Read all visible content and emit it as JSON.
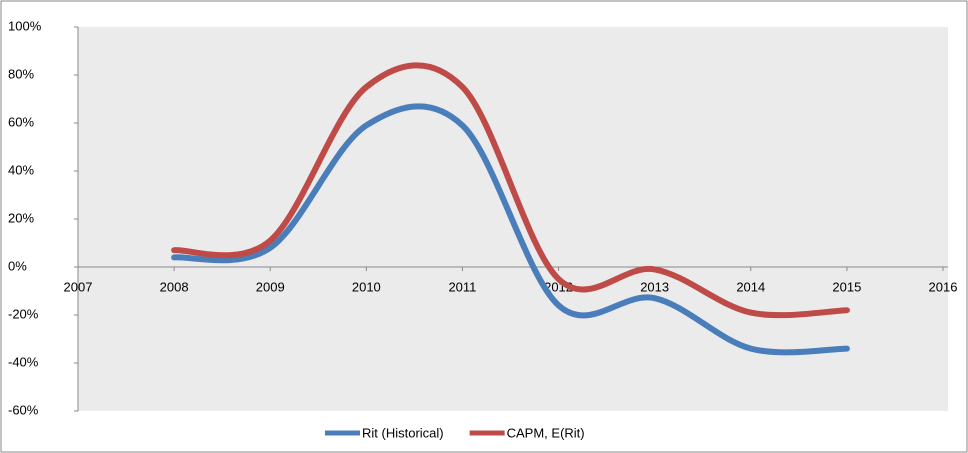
{
  "chart_data": {
    "type": "line",
    "x": [
      2008,
      2009,
      2010,
      2011,
      2012,
      2013,
      2014,
      2015
    ],
    "series": [
      {
        "name": "Rit (Historical)",
        "color": "#4a7ebb",
        "values": [
          4,
          8,
          59,
          59,
          -16,
          -13,
          -34,
          -34
        ]
      },
      {
        "name": "CAPM, E(Rit)",
        "color": "#be4b48",
        "values": [
          7,
          11,
          75,
          75,
          -5,
          -1,
          -19,
          -18
        ]
      }
    ],
    "xlim": [
      2007,
      2016
    ],
    "xticks": [
      2007,
      2008,
      2009,
      2010,
      2011,
      2012,
      2013,
      2014,
      2015,
      2016
    ],
    "ylim": [
      -60,
      100
    ],
    "yticks": [
      {
        "value": -60,
        "label": "-60%"
      },
      {
        "value": -40,
        "label": "-40%"
      },
      {
        "value": -20,
        "label": "-20%"
      },
      {
        "value": 0,
        "label": "0%"
      },
      {
        "value": 20,
        "label": "20%"
      },
      {
        "value": 40,
        "label": "40%"
      },
      {
        "value": 60,
        "label": "60%"
      },
      {
        "value": 80,
        "label": "80%"
      },
      {
        "value": 100,
        "label": "100%"
      }
    ],
    "legend": "bottom",
    "smooth": true
  }
}
